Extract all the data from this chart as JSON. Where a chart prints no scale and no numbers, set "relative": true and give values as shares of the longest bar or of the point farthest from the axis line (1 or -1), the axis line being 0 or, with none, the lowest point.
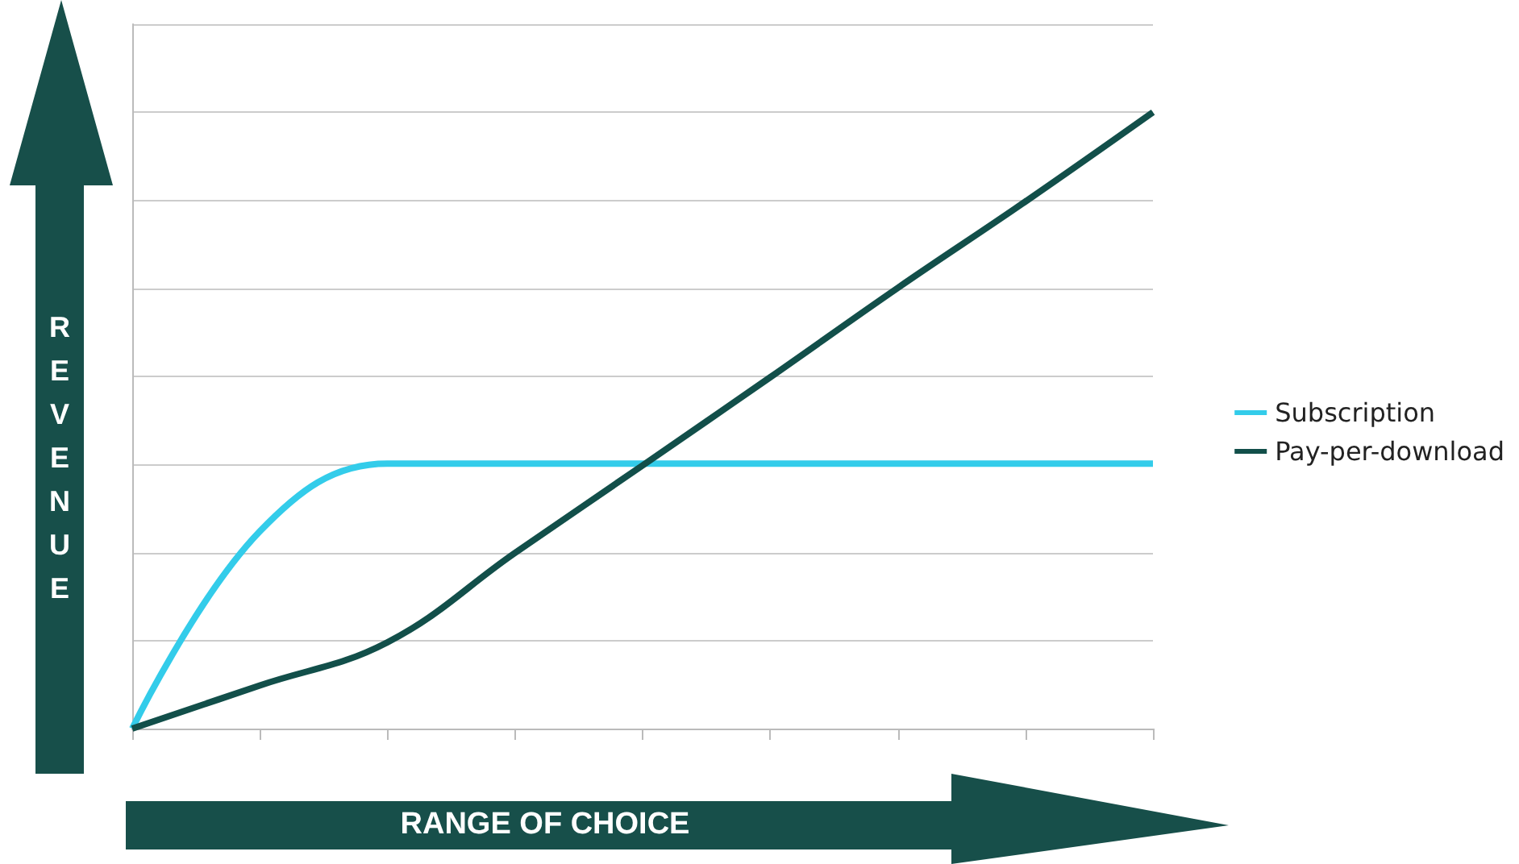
{
  "chart_data": {
    "type": "line",
    "relative": true,
    "xlabel": "RANGE OF CHOICE",
    "ylabel": "REVENUE",
    "categories": [
      null,
      null,
      null,
      null,
      null,
      null,
      null,
      null,
      null
    ],
    "series": [
      {
        "name": "Subscription",
        "color": "#33ccea",
        "values": [
          0,
          0.32,
          0.43,
          0.43,
          0.43,
          0.43,
          0.43,
          0.43,
          0.43
        ]
      },
      {
        "name": "Pay-per-download",
        "color": "#124f4a",
        "values": [
          0,
          0.07,
          0.14,
          0.285,
          0.427,
          0.57,
          0.715,
          0.855,
          1
        ]
      }
    ],
    "grid": "y",
    "legend": "right",
    "marker": "none"
  }
}
